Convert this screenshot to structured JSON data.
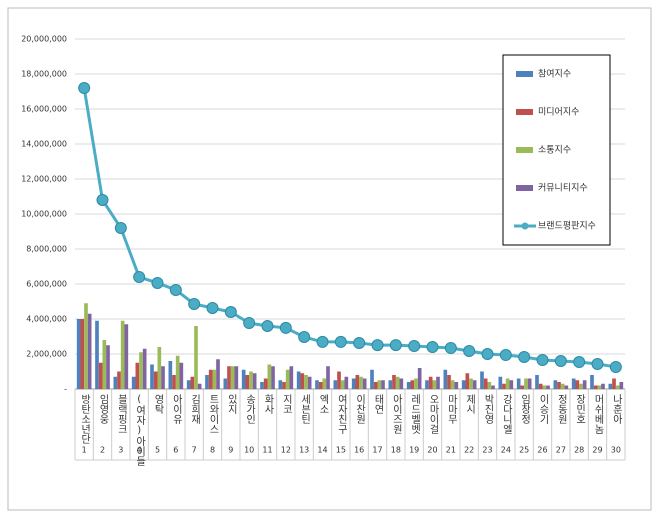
{
  "chart_data": {
    "type": "bar-line",
    "categories": [
      "방탄소년단",
      "임영웅",
      "블랙핑크",
      "(여자)아이들",
      "영탁",
      "아이유",
      "김희재",
      "트와이스",
      "있지",
      "송가인",
      "화사",
      "지코",
      "세븐틴",
      "엑소",
      "여자친구",
      "이찬원",
      "태연",
      "아이즈원",
      "레드벨벳",
      "오마이걸",
      "마마무",
      "제시",
      "박진영",
      "강다니엘",
      "임창정",
      "이승기",
      "정동원",
      "장민호",
      "머쉬베놈",
      "나훈아"
    ],
    "ranks": [
      1,
      2,
      3,
      4,
      5,
      6,
      7,
      8,
      9,
      10,
      11,
      12,
      13,
      14,
      15,
      16,
      17,
      18,
      19,
      20,
      21,
      22,
      23,
      24,
      25,
      26,
      27,
      28,
      29,
      30
    ],
    "series": [
      {
        "name": "참여지수",
        "color": "#4f81bd",
        "kind": "bar",
        "values": [
          4000000,
          3900000,
          700000,
          700000,
          1400000,
          1600000,
          500000,
          800000,
          600000,
          1100000,
          400000,
          500000,
          1000000,
          500000,
          500000,
          600000,
          1100000,
          500000,
          400000,
          500000,
          1100000,
          500000,
          1000000,
          700000,
          600000,
          800000,
          500000,
          600000,
          800000,
          300000
        ]
      },
      {
        "name": "미디어지수",
        "color": "#c0504d",
        "kind": "bar",
        "values": [
          4000000,
          1500000,
          1000000,
          1500000,
          1000000,
          800000,
          700000,
          1100000,
          1300000,
          800000,
          600000,
          400000,
          900000,
          400000,
          1000000,
          800000,
          400000,
          800000,
          500000,
          700000,
          800000,
          900000,
          600000,
          300000,
          200000,
          300000,
          400000,
          500000,
          200000,
          600000
        ]
      },
      {
        "name": "소통지수",
        "color": "#9bbb59",
        "kind": "bar",
        "values": [
          4900000,
          2800000,
          3900000,
          2100000,
          2400000,
          1900000,
          3600000,
          1100000,
          1300000,
          1000000,
          1400000,
          1100000,
          800000,
          600000,
          500000,
          700000,
          500000,
          700000,
          600000,
          500000,
          500000,
          600000,
          400000,
          600000,
          600000,
          200000,
          300000,
          300000,
          200000,
          200000
        ]
      },
      {
        "name": "커뮤니티지수",
        "color": "#8064a2",
        "kind": "bar",
        "values": [
          4300000,
          2500000,
          3700000,
          2300000,
          1300000,
          1500000,
          300000,
          1700000,
          1300000,
          900000,
          1300000,
          1300000,
          700000,
          1300000,
          700000,
          600000,
          500000,
          600000,
          1200000,
          700000,
          400000,
          500000,
          200000,
          500000,
          600000,
          200000,
          200000,
          500000,
          300000,
          400000
        ]
      },
      {
        "name": "브랜드평판지수",
        "color": "#4bacc6",
        "kind": "line",
        "values": [
          17200000,
          10800000,
          9200000,
          6400000,
          6060000,
          5660000,
          4860000,
          4630000,
          4400000,
          3770000,
          3600000,
          3490000,
          2970000,
          2690000,
          2690000,
          2630000,
          2510000,
          2510000,
          2460000,
          2400000,
          2340000,
          2170000,
          2000000,
          1940000,
          1830000,
          1660000,
          1600000,
          1540000,
          1430000,
          1260000
        ]
      }
    ],
    "ylim": [
      0,
      20000000
    ],
    "yticks": [
      {
        "value": 0,
        "label": "-"
      },
      {
        "value": 2000000,
        "label": "2,000,000"
      },
      {
        "value": 4000000,
        "label": "4,000,000"
      },
      {
        "value": 6000000,
        "label": "6,000,000"
      },
      {
        "value": 8000000,
        "label": "8,000,000"
      },
      {
        "value": 10000000,
        "label": "10,000,000"
      },
      {
        "value": 12000000,
        "label": "12,000,000"
      },
      {
        "value": 14000000,
        "label": "14,000,000"
      },
      {
        "value": 16000000,
        "label": "16,000,000"
      },
      {
        "value": 18000000,
        "label": "18,000,000"
      },
      {
        "value": 20000000,
        "label": "20,000,000"
      }
    ],
    "grid": true
  }
}
